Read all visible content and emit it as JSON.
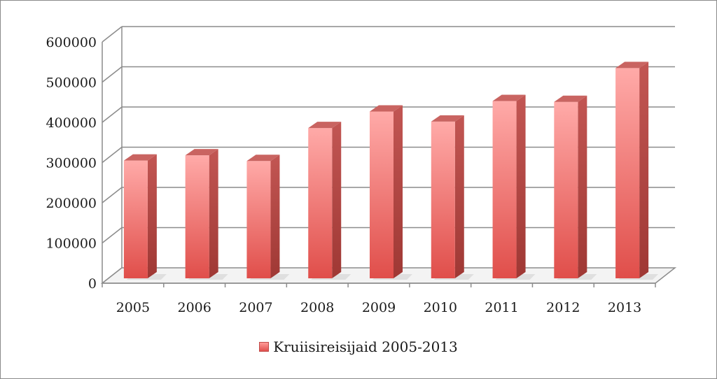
{
  "colors": {
    "bar_top": "#ffaaa8",
    "bar_bottom": "#e04e4a",
    "bar_side": "#b24541",
    "bar_cap": "#c96461",
    "grid": "#8c8c8c",
    "floor_shadow": "#d9d9d9"
  },
  "chart_data": {
    "type": "bar",
    "title": "",
    "xlabel": "",
    "ylabel": "",
    "categories": [
      "2005",
      "2006",
      "2007",
      "2008",
      "2009",
      "2010",
      "2011",
      "2012",
      "2013"
    ],
    "series": [
      {
        "name": "Kruiisireisijaid 2005-2013",
        "values": [
          298000,
          311000,
          297000,
          379000,
          420000,
          395000,
          446000,
          444000,
          528000
        ]
      }
    ],
    "ylim": [
      0,
      600000
    ],
    "yticks": [
      "0",
      "100000",
      "200000",
      "300000",
      "400000",
      "500000",
      "600000"
    ],
    "grid": true,
    "legend_position": "bottom"
  }
}
